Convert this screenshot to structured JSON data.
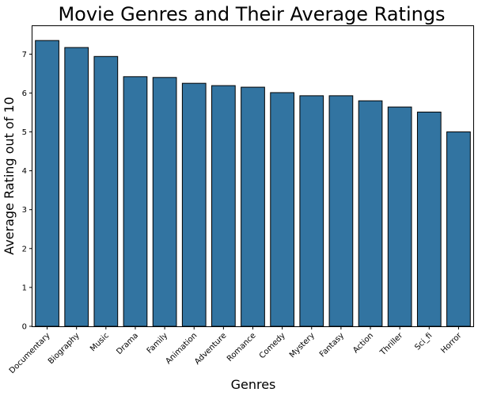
{
  "chart_data": {
    "type": "bar",
    "title": "Movie Genres and Their Average Ratings",
    "xlabel": "Genres",
    "ylabel": "Average Rating out of 10",
    "categories": [
      "Documentary",
      "Biography",
      "Music",
      "Drama",
      "Family",
      "Animation",
      "Adventure",
      "Romance",
      "Comedy",
      "Mystery",
      "Fantasy",
      "Action",
      "Thriller",
      "Sci_fi",
      "Horror"
    ],
    "values": [
      7.35,
      7.17,
      6.94,
      6.42,
      6.4,
      6.25,
      6.19,
      6.15,
      6.01,
      5.93,
      5.93,
      5.8,
      5.64,
      5.51,
      5.0
    ],
    "ylim": [
      0,
      7.72
    ],
    "yticks": [
      0,
      1,
      2,
      3,
      4,
      5,
      6,
      7
    ],
    "grid": false,
    "legend": "none",
    "bar_color": "#3274a1",
    "edge_color": "#000000"
  }
}
